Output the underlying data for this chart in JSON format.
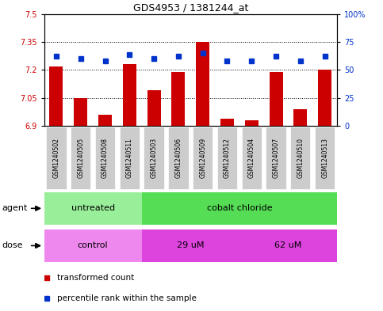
{
  "title": "GDS4953 / 1381244_at",
  "samples": [
    "GSM1240502",
    "GSM1240505",
    "GSM1240508",
    "GSM1240511",
    "GSM1240503",
    "GSM1240506",
    "GSM1240509",
    "GSM1240512",
    "GSM1240504",
    "GSM1240507",
    "GSM1240510",
    "GSM1240513"
  ],
  "bar_values": [
    7.22,
    7.05,
    6.96,
    7.23,
    7.09,
    7.19,
    7.35,
    6.94,
    6.93,
    7.19,
    6.99,
    7.2
  ],
  "dot_values": [
    62,
    60,
    58,
    64,
    60,
    62,
    65,
    58,
    58,
    62,
    58,
    62
  ],
  "ylim_left": [
    6.9,
    7.5
  ],
  "ylim_right": [
    0,
    100
  ],
  "yticks_left": [
    6.9,
    7.05,
    7.2,
    7.35,
    7.5
  ],
  "ytick_labels_left": [
    "6.9",
    "7.05",
    "7.2",
    "7.35",
    "7.5"
  ],
  "yticks_right": [
    0,
    25,
    50,
    75,
    100
  ],
  "ytick_labels_right": [
    "0",
    "25",
    "50",
    "75",
    "100%"
  ],
  "bar_color": "#cc0000",
  "dot_color": "#0033cc",
  "baseline": 6.9,
  "agent_groups": [
    {
      "label": "untreated",
      "start": 0,
      "end": 4,
      "color": "#99ee99"
    },
    {
      "label": "cobalt chloride",
      "start": 4,
      "end": 12,
      "color": "#55dd55"
    }
  ],
  "dose_groups": [
    {
      "label": "control",
      "start": 0,
      "end": 4,
      "color": "#ee88ee"
    },
    {
      "label": "29 uM",
      "start": 4,
      "end": 8,
      "color": "#dd44dd"
    },
    {
      "label": "62 uM",
      "start": 8,
      "end": 12,
      "color": "#dd44dd"
    }
  ],
  "legend_bar_label": "transformed count",
  "legend_dot_label": "percentile rank within the sample",
  "label_box_color": "#cccccc",
  "row_label_fontsize": 8,
  "tick_fontsize": 7,
  "title_fontsize": 9
}
